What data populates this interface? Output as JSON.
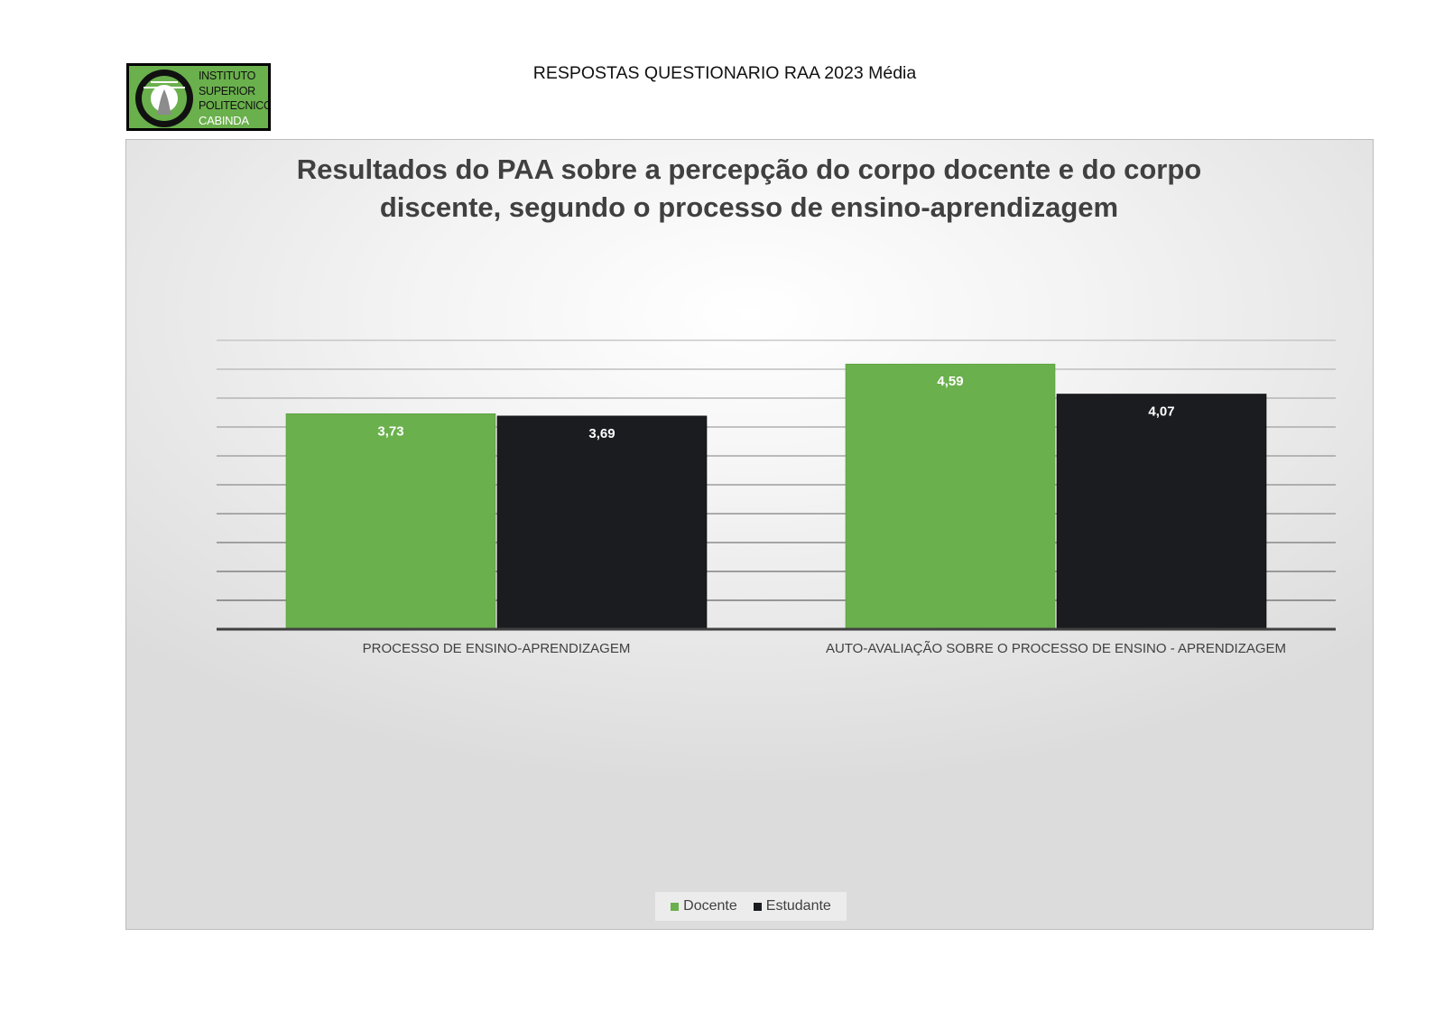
{
  "header": {
    "title": "RESPOSTAS QUESTIONARIO RAA 2023 Média"
  },
  "logo": {
    "lines": [
      "INSTITUTO",
      "SUPERIOR",
      "POLITECNICO",
      "CABINDA"
    ]
  },
  "colors": {
    "docente": "#6ab04c",
    "estudante": "#1b1c20",
    "title": "#404040"
  },
  "chart_data": {
    "type": "bar",
    "title_line1": "Resultados do PAA sobre a percepção do corpo docente e do corpo",
    "title_line2": "discente, segundo o processo de ensino-aprendizagem",
    "categories": [
      "PROCESSO DE ENSINO-APRENDIZAGEM",
      "AUTO-AVALIAÇÃO SOBRE O PROCESSO DE ENSINO - APRENDIZAGEM"
    ],
    "series": [
      {
        "name": "Docente",
        "values": [
          3.73,
          4.59
        ],
        "labels": [
          "3,73",
          "4,59"
        ]
      },
      {
        "name": "Estudante",
        "values": [
          3.69,
          4.07
        ],
        "labels": [
          "3,69",
          "4,07"
        ]
      }
    ],
    "ylim": [
      0,
      5
    ],
    "gridline_step": 0.5,
    "grid": true,
    "legend_position": "bottom"
  }
}
